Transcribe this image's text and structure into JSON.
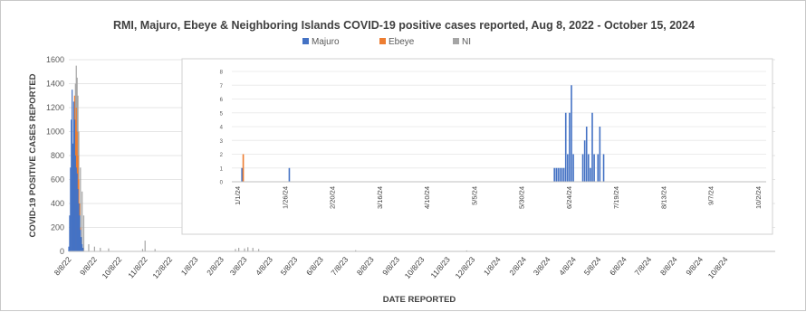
{
  "chart_data": [
    {
      "type": "bar",
      "title": "RMI, Majuro, Ebeye & Neighboring Islands COVID-19 positive cases reported, Aug 8, 2022 - October 15, 2024",
      "xlabel": "DATE REPORTED",
      "ylabel": "COVID-19  POSITIVE CASES REPORTED",
      "ylim": [
        0,
        1600
      ],
      "yticks": [
        "0",
        "200",
        "400",
        "600",
        "800",
        "1000",
        "1200",
        "1400",
        "1600"
      ],
      "grid": true,
      "legend": {
        "position": "top-center",
        "entries": [
          "Majuro",
          "Ebeye",
          "NI"
        ]
      },
      "colors": {
        "Majuro": "#4472c4",
        "Ebeye": "#ed7d31",
        "NI": "#a5a5a5"
      },
      "xticks": [
        "8/8/22",
        "9/8/22",
        "10/8/22",
        "11/8/22",
        "12/8/22",
        "1/8/23",
        "2/8/23",
        "3/8/23",
        "4/8/23",
        "5/8/23",
        "6/8/23",
        "7/8/23",
        "8/8/23",
        "9/8/23",
        "10/8/23",
        "11/8/23",
        "12/8/23",
        "1/8/24",
        "2/8/24",
        "3/8/24",
        "4/8/24",
        "5/8/24",
        "6/8/24",
        "7/8/24",
        "8/8/24",
        "9/8/24",
        "10/8/24"
      ],
      "series": [
        {
          "name": "Majuro",
          "x": [
            "8/8/22",
            "8/9/22",
            "8/10/22",
            "8/11/22",
            "8/12/22",
            "8/13/22",
            "8/14/22",
            "8/15/22",
            "8/16/22",
            "8/17/22",
            "8/18/22",
            "8/19/22",
            "8/20/22",
            "8/21/22",
            "8/22/22",
            "8/23/22",
            "8/24/22",
            "8/25/22"
          ],
          "values": [
            40,
            300,
            700,
            1100,
            1350,
            900,
            1250,
            1100,
            800,
            700,
            650,
            520,
            400,
            300,
            180,
            120,
            60,
            30
          ]
        },
        {
          "name": "Ebeye",
          "x": [
            "8/12/22",
            "8/14/22",
            "8/15/22",
            "8/16/22",
            "8/17/22",
            "8/18/22",
            "8/19/22",
            "8/20/22",
            "8/21/22",
            "8/22/22",
            "8/23/22"
          ],
          "values": [
            250,
            850,
            1300,
            1100,
            1200,
            1000,
            800,
            600,
            400,
            200,
            60
          ]
        },
        {
          "name": "NI",
          "x": [
            "8/12/22",
            "8/14/22",
            "8/16/22",
            "8/17/22",
            "8/18/22",
            "8/19/22",
            "8/20/22",
            "8/22/22",
            "8/24/22",
            "8/26/22",
            "9/1/22",
            "9/8/22",
            "9/15/22",
            "9/25/22",
            "11/5/22",
            "11/8/22",
            "11/20/22",
            "2/25/23",
            "3/1/23",
            "3/8/23",
            "3/12/23",
            "3/18/23",
            "3/25/23",
            "7/20/23",
            "12/1/23"
          ],
          "values": [
            600,
            900,
            1400,
            1550,
            1450,
            1300,
            1000,
            700,
            500,
            300,
            60,
            40,
            30,
            25,
            20,
            90,
            20,
            20,
            30,
            25,
            35,
            30,
            20,
            10,
            8
          ]
        }
      ]
    },
    {
      "type": "bar",
      "ylim": [
        0,
        8
      ],
      "yticks": [
        "0",
        "1",
        "2",
        "3",
        "4",
        "5",
        "6",
        "7",
        "8"
      ],
      "xticks": [
        "1/1/24",
        "1/26/24",
        "2/20/24",
        "3/16/24",
        "4/10/24",
        "5/5/24",
        "5/30/24",
        "6/24/24",
        "7/19/24",
        "8/13/24",
        "9/7/24",
        "10/2/24"
      ],
      "grid": true,
      "series": [
        {
          "name": "Majuro",
          "x": [
            "1/3/24",
            "1/28/24",
            "6/16/24",
            "6/17/24",
            "6/18/24",
            "6/19/24",
            "6/20/24",
            "6/21/24",
            "6/22/24",
            "6/23/24",
            "6/24/24",
            "6/25/24",
            "6/26/24",
            "7/1/24",
            "7/2/24",
            "7/3/24",
            "7/4/24",
            "7/5/24",
            "7/6/24",
            "7/7/24",
            "7/9/24",
            "7/10/24",
            "7/12/24"
          ],
          "values": [
            1,
            1,
            1,
            1,
            1,
            1,
            1,
            1,
            5,
            2,
            5,
            7,
            2,
            2,
            3,
            4,
            2,
            1,
            5,
            2,
            2,
            4,
            2
          ]
        },
        {
          "name": "Ebeye",
          "x": [
            "1/3/24"
          ],
          "values": [
            2
          ]
        }
      ]
    }
  ]
}
